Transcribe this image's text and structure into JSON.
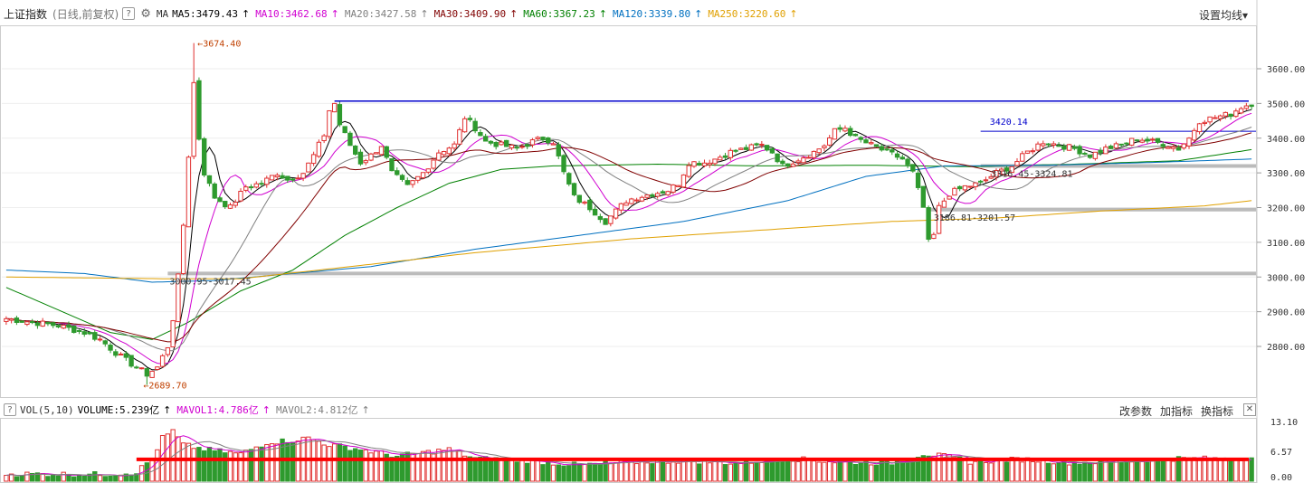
{
  "header": {
    "index_name": "上证指数",
    "period": "(日线,前复权)",
    "help": "?",
    "ma_label": "MA",
    "ma_items": [
      {
        "text": "MA5:3479.43",
        "color": "#000000",
        "arrow": "↑"
      },
      {
        "text": "MA10:3462.68",
        "color": "#d000d0",
        "arrow": "↑"
      },
      {
        "text": "MA20:3427.58",
        "color": "#808080",
        "arrow": "↑"
      },
      {
        "text": "MA30:3409.90",
        "color": "#800000",
        "arrow": "↑"
      },
      {
        "text": "MA60:3367.23",
        "color": "#008000",
        "arrow": "↑"
      },
      {
        "text": "MA120:3339.80",
        "color": "#0070c0",
        "arrow": "↑"
      },
      {
        "text": "MA250:3220.60",
        "color": "#e0a000",
        "arrow": "↑"
      }
    ],
    "settings": "设置均线",
    "settings_caret": "▾"
  },
  "volume_header": {
    "help": "?",
    "label": "VOL(5,10)",
    "items": [
      {
        "text": "VOLUME:5.239亿",
        "color": "#000000",
        "arrow": "↑"
      },
      {
        "text": "MAVOL1:4.786亿",
        "color": "#d000d0",
        "arrow": "↑"
      },
      {
        "text": "MAVOL2:4.812亿",
        "color": "#808080",
        "arrow": "↑"
      }
    ],
    "buttons": [
      "改参数",
      "加指标",
      "换指标"
    ],
    "close": "✕"
  },
  "colors": {
    "up": "#e03030",
    "down": "#2e9a2e",
    "ma5": "#000000",
    "ma10": "#d000d0",
    "ma20": "#808080",
    "ma30": "#800000",
    "ma60": "#008000",
    "ma120": "#0070c0",
    "ma250": "#e0a000"
  },
  "chart_data": {
    "type": "candlestick",
    "price_axis": {
      "ticks": [
        "3600.00",
        "3500.00",
        "3400.00",
        "3300.00",
        "3200.00",
        "3100.00",
        "3000.00",
        "2900.00",
        "2800.00"
      ],
      "ylim": [
        2680,
        3700
      ]
    },
    "volume_axis": {
      "ticks": [
        "13.10",
        "6.57",
        "0.00"
      ],
      "ylim": [
        0,
        13.1
      ],
      "unit": "亿"
    },
    "annotations": {
      "high": "3674.40",
      "low": "2689.70",
      "resistance_label": "3420.14",
      "zone1": "3000.95-3017.45",
      "zone2": "3186.81-3201.57",
      "zone3": "3316.45-3324.81"
    },
    "levels": {
      "top_line": 3507,
      "resistance": 3420,
      "zone3": 3320,
      "zone2": 3194,
      "zone1": 3010
    },
    "anchors": [
      [
        0,
        2880
      ],
      [
        5,
        2870
      ],
      [
        10,
        2860
      ],
      [
        15,
        2840
      ],
      [
        18,
        2820
      ],
      [
        22,
        2770
      ],
      [
        25,
        2740
      ],
      [
        27,
        2720
      ],
      [
        29,
        2740
      ],
      [
        31,
        2800
      ],
      [
        32,
        2880
      ],
      [
        33,
        3000
      ],
      [
        34,
        3150
      ],
      [
        35,
        3350
      ],
      [
        36,
        3674
      ],
      [
        37,
        3400
      ],
      [
        38,
        3300
      ],
      [
        40,
        3230
      ],
      [
        43,
        3200
      ],
      [
        46,
        3260
      ],
      [
        49,
        3270
      ],
      [
        52,
        3300
      ],
      [
        54,
        3280
      ],
      [
        57,
        3300
      ],
      [
        59,
        3350
      ],
      [
        61,
        3410
      ],
      [
        62,
        3480
      ],
      [
        63,
        3500
      ],
      [
        64,
        3440
      ],
      [
        66,
        3380
      ],
      [
        68,
        3330
      ],
      [
        70,
        3350
      ],
      [
        72,
        3380
      ],
      [
        74,
        3300
      ],
      [
        77,
        3260
      ],
      [
        80,
        3300
      ],
      [
        83,
        3360
      ],
      [
        86,
        3380
      ],
      [
        88,
        3460
      ],
      [
        90,
        3430
      ],
      [
        92,
        3390
      ],
      [
        95,
        3380
      ],
      [
        98,
        3370
      ],
      [
        101,
        3390
      ],
      [
        103,
        3400
      ],
      [
        105,
        3390
      ],
      [
        107,
        3300
      ],
      [
        109,
        3230
      ],
      [
        112,
        3200
      ],
      [
        115,
        3160
      ],
      [
        117,
        3190
      ],
      [
        119,
        3220
      ],
      [
        121,
        3230
      ],
      [
        124,
        3240
      ],
      [
        127,
        3250
      ],
      [
        129,
        3270
      ],
      [
        131,
        3330
      ],
      [
        134,
        3330
      ],
      [
        136,
        3340
      ],
      [
        139,
        3360
      ],
      [
        142,
        3370
      ],
      [
        145,
        3380
      ],
      [
        147,
        3360
      ],
      [
        149,
        3320
      ],
      [
        152,
        3340
      ],
      [
        155,
        3360
      ],
      [
        157,
        3380
      ],
      [
        159,
        3420
      ],
      [
        161,
        3430
      ],
      [
        163,
        3400
      ],
      [
        166,
        3380
      ],
      [
        169,
        3360
      ],
      [
        172,
        3340
      ],
      [
        174,
        3300
      ],
      [
        176,
        3200
      ],
      [
        177,
        3100
      ],
      [
        178,
        3120
      ],
      [
        179,
        3200
      ],
      [
        181,
        3240
      ],
      [
        184,
        3260
      ],
      [
        187,
        3270
      ],
      [
        190,
        3300
      ],
      [
        193,
        3320
      ],
      [
        196,
        3360
      ],
      [
        199,
        3390
      ],
      [
        202,
        3380
      ],
      [
        205,
        3370
      ],
      [
        208,
        3350
      ],
      [
        211,
        3370
      ],
      [
        214,
        3380
      ],
      [
        217,
        3400
      ],
      [
        220,
        3390
      ],
      [
        223,
        3380
      ],
      [
        225,
        3370
      ],
      [
        227,
        3400
      ],
      [
        229,
        3450
      ],
      [
        232,
        3460
      ],
      [
        235,
        3470
      ],
      [
        237,
        3490
      ],
      [
        239,
        3500
      ]
    ],
    "volume_anchors": [
      [
        0,
        1.6
      ],
      [
        20,
        1.5
      ],
      [
        25,
        2.0
      ],
      [
        28,
        5.0
      ],
      [
        30,
        9.5
      ],
      [
        32,
        11.0
      ],
      [
        34,
        8.0
      ],
      [
        38,
        7.0
      ],
      [
        45,
        6.0
      ],
      [
        50,
        8.5
      ],
      [
        55,
        9.0
      ],
      [
        58,
        9.5
      ],
      [
        62,
        8.0
      ],
      [
        68,
        7.0
      ],
      [
        75,
        5.5
      ],
      [
        85,
        7.0
      ],
      [
        90,
        5.0
      ],
      [
        100,
        4.5
      ],
      [
        110,
        3.5
      ],
      [
        120,
        4.2
      ],
      [
        130,
        4.5
      ],
      [
        140,
        4.0
      ],
      [
        150,
        5.0
      ],
      [
        160,
        4.2
      ],
      [
        170,
        4.0
      ],
      [
        176,
        6.0
      ],
      [
        180,
        5.5
      ],
      [
        185,
        4.3
      ],
      [
        195,
        4.8
      ],
      [
        205,
        4.1
      ],
      [
        215,
        4.4
      ],
      [
        225,
        5.0
      ],
      [
        235,
        4.9
      ],
      [
        239,
        5.2
      ]
    ],
    "ma_series": [
      {
        "name": "MA60",
        "color_key": "ma60",
        "points": [
          [
            0,
            2970
          ],
          [
            20,
            2840
          ],
          [
            28,
            2820
          ],
          [
            35,
            2870
          ],
          [
            45,
            2960
          ],
          [
            55,
            3020
          ],
          [
            65,
            3120
          ],
          [
            75,
            3200
          ],
          [
            85,
            3270
          ],
          [
            95,
            3310
          ],
          [
            105,
            3320
          ],
          [
            125,
            3325
          ],
          [
            145,
            3320
          ],
          [
            165,
            3322
          ],
          [
            185,
            3318
          ],
          [
            205,
            3325
          ],
          [
            225,
            3335
          ],
          [
            239,
            3367
          ]
        ]
      },
      {
        "name": "MA120",
        "color_key": "ma120",
        "points": [
          [
            0,
            3020
          ],
          [
            15,
            3010
          ],
          [
            28,
            2985
          ],
          [
            40,
            2990
          ],
          [
            55,
            3010
          ],
          [
            70,
            3030
          ],
          [
            90,
            3080
          ],
          [
            110,
            3120
          ],
          [
            130,
            3160
          ],
          [
            150,
            3220
          ],
          [
            165,
            3290
          ],
          [
            180,
            3320
          ],
          [
            200,
            3322
          ],
          [
            220,
            3330
          ],
          [
            239,
            3340
          ]
        ]
      },
      {
        "name": "MA250",
        "color_key": "ma250",
        "points": [
          [
            0,
            3000
          ],
          [
            30,
            2995
          ],
          [
            45,
            2995
          ],
          [
            60,
            3020
          ],
          [
            90,
            3070
          ],
          [
            120,
            3110
          ],
          [
            150,
            3140
          ],
          [
            170,
            3160
          ],
          [
            190,
            3170
          ],
          [
            210,
            3190
          ],
          [
            230,
            3205
          ],
          [
            239,
            3220
          ]
        ]
      }
    ]
  }
}
